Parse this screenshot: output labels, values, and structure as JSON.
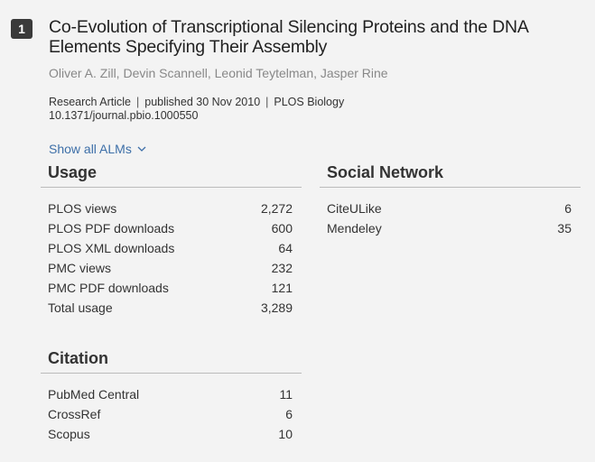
{
  "article": {
    "rank": "1",
    "title": "Co-Evolution of Transcriptional Silencing Proteins and the DNA Elements Specifying Their Assembly",
    "authors": "Oliver A. Zill, Devin Scannell, Leonid Teytelman, Jasper Rine",
    "type": "Research Article",
    "published": "published 30 Nov 2010",
    "journal": "PLOS Biology",
    "doi": "10.1371/journal.pbio.1000550"
  },
  "show_all": {
    "label": "Show all ALMs",
    "icon": "chevron-down-icon"
  },
  "usage": {
    "heading": "Usage",
    "rows": [
      {
        "label": "PLOS views",
        "value": "2,272"
      },
      {
        "label": "PLOS PDF downloads",
        "value": "600"
      },
      {
        "label": "PLOS XML downloads",
        "value": "64"
      },
      {
        "label": "PMC views",
        "value": "232"
      },
      {
        "label": "PMC PDF downloads",
        "value": "121"
      },
      {
        "label": "Total usage",
        "value": "3,289"
      }
    ]
  },
  "social": {
    "heading": "Social Network",
    "rows": [
      {
        "label": "CiteULike",
        "value": "6"
      },
      {
        "label": "Mendeley",
        "value": "35"
      }
    ]
  },
  "citation": {
    "heading": "Citation",
    "rows": [
      {
        "label": "PubMed Central",
        "value": "11"
      },
      {
        "label": "CrossRef",
        "value": "6"
      },
      {
        "label": "Scopus",
        "value": "10"
      }
    ]
  }
}
